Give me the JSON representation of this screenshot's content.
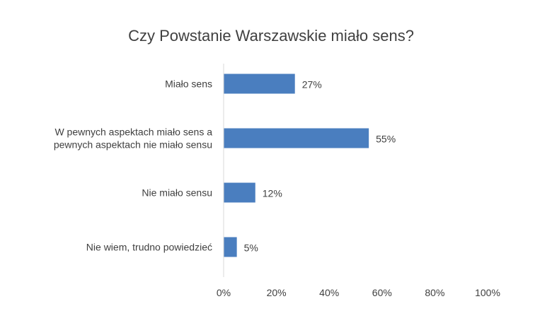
{
  "chart_data": {
    "type": "bar",
    "orientation": "horizontal",
    "title": "Czy Powstanie Warszawskie miało sens?",
    "categories": [
      [
        "Miało sens"
      ],
      [
        "W pewnych aspektach miało sens a",
        "pewnych aspektach nie miało sensu"
      ],
      [
        "Nie miało sensu"
      ],
      [
        "Nie wiem, trudno powiedzieć"
      ]
    ],
    "values": [
      27,
      55,
      12,
      5
    ],
    "data_labels": [
      "27%",
      "55%",
      "12%",
      "5%"
    ],
    "xlim": [
      0,
      100
    ],
    "xticks": [
      0,
      20,
      40,
      60,
      80,
      100
    ],
    "xtick_labels": [
      "0%",
      "20%",
      "40%",
      "60%",
      "80%",
      "100%"
    ],
    "grid": false,
    "legend": "none",
    "bar_color": "#4a7ebf"
  }
}
